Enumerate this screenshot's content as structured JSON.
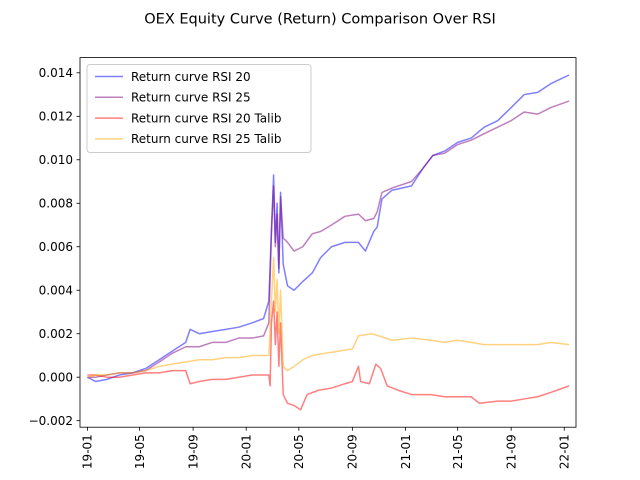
{
  "chart_data": {
    "type": "line",
    "title": "OEX Equity Curve (Return) Comparison Over RSI",
    "xlabel": "",
    "ylabel": "",
    "x_ticks": [
      "19-01",
      "19-05",
      "19-09",
      "20-01",
      "20-05",
      "20-09",
      "21-01",
      "21-05",
      "21-09",
      "22-01"
    ],
    "x_tick_labels_visible": [
      "19-01",
      "19-05",
      "19-09",
      "20-01",
      "20-05",
      "20-09",
      "21-01",
      "21-05",
      "21-09",
      "22-01"
    ],
    "y_ticks": [
      "−0.002",
      "0.000",
      "0.002",
      "0.004",
      "0.006",
      "0.008",
      "0.010",
      "0.012",
      "0.014"
    ],
    "ylim": [
      -0.0023,
      0.0147
    ],
    "xlim": [
      "2018-12-15",
      "2022-01-28"
    ],
    "grid": false,
    "legend_position": "upper-left",
    "series": [
      {
        "name": "Return curve RSI 20",
        "color": "#0000ff",
        "points": [
          [
            "2019-01-01",
            0.0
          ],
          [
            "2019-01-20",
            -0.0002
          ],
          [
            "2019-02-15",
            -0.0001
          ],
          [
            "2019-03-15",
            0.0001
          ],
          [
            "2019-04-15",
            0.0002
          ],
          [
            "2019-05-15",
            0.0004
          ],
          [
            "2019-06-15",
            0.0008
          ],
          [
            "2019-07-15",
            0.0012
          ],
          [
            "2019-08-15",
            0.0016
          ],
          [
            "2019-08-25",
            0.0022
          ],
          [
            "2019-09-15",
            0.002
          ],
          [
            "2019-10-15",
            0.0021
          ],
          [
            "2019-11-15",
            0.0022
          ],
          [
            "2019-12-15",
            0.0023
          ],
          [
            "2020-01-15",
            0.0025
          ],
          [
            "2020-02-10",
            0.0027
          ],
          [
            "2020-02-22",
            0.0035
          ],
          [
            "2020-02-28",
            0.0068
          ],
          [
            "2020-03-04",
            0.0093
          ],
          [
            "2020-03-08",
            0.0062
          ],
          [
            "2020-03-12",
            0.008
          ],
          [
            "2020-03-16",
            0.0048
          ],
          [
            "2020-03-20",
            0.0085
          ],
          [
            "2020-03-26",
            0.0052
          ],
          [
            "2020-04-05",
            0.0042
          ],
          [
            "2020-04-20",
            0.004
          ],
          [
            "2020-05-10",
            0.0044
          ],
          [
            "2020-06-01",
            0.0048
          ],
          [
            "2020-06-20",
            0.0055
          ],
          [
            "2020-07-15",
            0.006
          ],
          [
            "2020-08-15",
            0.0062
          ],
          [
            "2020-09-15",
            0.0062
          ],
          [
            "2020-10-01",
            0.0058
          ],
          [
            "2020-10-20",
            0.0067
          ],
          [
            "2020-10-28",
            0.0069
          ],
          [
            "2020-11-08",
            0.0082
          ],
          [
            "2020-12-01",
            0.0086
          ],
          [
            "2021-01-15",
            0.0088
          ],
          [
            "2021-02-10",
            0.0096
          ],
          [
            "2021-03-05",
            0.0102
          ],
          [
            "2021-04-01",
            0.0104
          ],
          [
            "2021-05-01",
            0.0108
          ],
          [
            "2021-06-01",
            0.011
          ],
          [
            "2021-07-01",
            0.0115
          ],
          [
            "2021-08-01",
            0.0118
          ],
          [
            "2021-09-01",
            0.0124
          ],
          [
            "2021-10-01",
            0.013
          ],
          [
            "2021-11-01",
            0.0131
          ],
          [
            "2021-12-01",
            0.0135
          ],
          [
            "2022-01-12",
            0.0139
          ]
        ]
      },
      {
        "name": "Return curve RSI 25",
        "color": "#800080",
        "points": [
          [
            "2019-01-01",
            0.0
          ],
          [
            "2019-01-20",
            0.0
          ],
          [
            "2019-02-15",
            0.0001
          ],
          [
            "2019-03-15",
            0.0002
          ],
          [
            "2019-04-15",
            0.0002
          ],
          [
            "2019-05-15",
            0.0003
          ],
          [
            "2019-06-15",
            0.0007
          ],
          [
            "2019-07-15",
            0.0011
          ],
          [
            "2019-08-15",
            0.0014
          ],
          [
            "2019-09-15",
            0.0014
          ],
          [
            "2019-10-15",
            0.0016
          ],
          [
            "2019-11-15",
            0.0016
          ],
          [
            "2019-12-15",
            0.0018
          ],
          [
            "2020-01-15",
            0.0018
          ],
          [
            "2020-02-10",
            0.0019
          ],
          [
            "2020-02-22",
            0.0025
          ],
          [
            "2020-02-28",
            0.0066
          ],
          [
            "2020-03-04",
            0.0088
          ],
          [
            "2020-03-08",
            0.006
          ],
          [
            "2020-03-12",
            0.0075
          ],
          [
            "2020-03-16",
            0.005
          ],
          [
            "2020-03-20",
            0.0083
          ],
          [
            "2020-03-26",
            0.0064
          ],
          [
            "2020-04-05",
            0.0062
          ],
          [
            "2020-04-20",
            0.0058
          ],
          [
            "2020-05-10",
            0.006
          ],
          [
            "2020-06-01",
            0.0066
          ],
          [
            "2020-06-20",
            0.0067
          ],
          [
            "2020-07-15",
            0.007
          ],
          [
            "2020-08-15",
            0.0074
          ],
          [
            "2020-09-15",
            0.0075
          ],
          [
            "2020-10-01",
            0.0072
          ],
          [
            "2020-10-20",
            0.0073
          ],
          [
            "2020-10-28",
            0.0076
          ],
          [
            "2020-11-08",
            0.0085
          ],
          [
            "2020-12-01",
            0.0087
          ],
          [
            "2021-01-15",
            0.009
          ],
          [
            "2021-02-10",
            0.0096
          ],
          [
            "2021-03-05",
            0.0102
          ],
          [
            "2021-04-01",
            0.0103
          ],
          [
            "2021-05-01",
            0.0107
          ],
          [
            "2021-06-01",
            0.0109
          ],
          [
            "2021-07-01",
            0.0112
          ],
          [
            "2021-08-01",
            0.0115
          ],
          [
            "2021-09-01",
            0.0118
          ],
          [
            "2021-10-01",
            0.0122
          ],
          [
            "2021-11-01",
            0.0121
          ],
          [
            "2021-12-01",
            0.0124
          ],
          [
            "2022-01-12",
            0.0127
          ]
        ]
      },
      {
        "name": "Return curve RSI 20 Talib",
        "color": "#ff0000",
        "points": [
          [
            "2019-01-01",
            0.0001
          ],
          [
            "2019-01-20",
            0.0001
          ],
          [
            "2019-02-15",
            0.0
          ],
          [
            "2019-03-15",
            0.0
          ],
          [
            "2019-04-15",
            0.0001
          ],
          [
            "2019-05-15",
            0.0002
          ],
          [
            "2019-06-15",
            0.0002
          ],
          [
            "2019-07-15",
            0.0003
          ],
          [
            "2019-08-15",
            0.0003
          ],
          [
            "2019-08-25",
            -0.0003
          ],
          [
            "2019-09-15",
            -0.0002
          ],
          [
            "2019-10-15",
            -0.0001
          ],
          [
            "2019-11-15",
            -0.0001
          ],
          [
            "2019-12-15",
            0.0
          ],
          [
            "2020-01-15",
            0.0001
          ],
          [
            "2020-02-10",
            0.0001
          ],
          [
            "2020-02-22",
            0.0001
          ],
          [
            "2020-02-25",
            -0.0004
          ],
          [
            "2020-02-28",
            0.0025
          ],
          [
            "2020-03-04",
            0.0035
          ],
          [
            "2020-03-08",
            0.0015
          ],
          [
            "2020-03-12",
            0.003
          ],
          [
            "2020-03-16",
            0.0005
          ],
          [
            "2020-03-20",
            0.0025
          ],
          [
            "2020-03-26",
            -0.0008
          ],
          [
            "2020-04-05",
            -0.0012
          ],
          [
            "2020-04-20",
            -0.0013
          ],
          [
            "2020-05-05",
            -0.0015
          ],
          [
            "2020-05-20",
            -0.0008
          ],
          [
            "2020-06-15",
            -0.0006
          ],
          [
            "2020-07-15",
            -0.0005
          ],
          [
            "2020-08-15",
            -0.0003
          ],
          [
            "2020-09-01",
            -0.0002
          ],
          [
            "2020-09-15",
            0.0005
          ],
          [
            "2020-09-20",
            -0.0002
          ],
          [
            "2020-10-10",
            -0.0003
          ],
          [
            "2020-10-25",
            0.0006
          ],
          [
            "2020-11-05",
            0.0004
          ],
          [
            "2020-11-20",
            -0.0004
          ],
          [
            "2020-12-15",
            -0.0006
          ],
          [
            "2021-01-15",
            -0.0008
          ],
          [
            "2021-03-01",
            -0.0008
          ],
          [
            "2021-04-01",
            -0.0009
          ],
          [
            "2021-05-01",
            -0.0009
          ],
          [
            "2021-06-01",
            -0.0009
          ],
          [
            "2021-06-20",
            -0.0012
          ],
          [
            "2021-08-01",
            -0.0011
          ],
          [
            "2021-09-01",
            -0.0011
          ],
          [
            "2021-10-01",
            -0.001
          ],
          [
            "2021-11-01",
            -0.0009
          ],
          [
            "2021-12-01",
            -0.0007
          ],
          [
            "2022-01-12",
            -0.0004
          ]
        ]
      },
      {
        "name": "Return curve RSI 25 Talib",
        "color": "#ffa500",
        "points": [
          [
            "2019-01-01",
            0.0
          ],
          [
            "2019-01-20",
            0.0001
          ],
          [
            "2019-02-15",
            0.0001
          ],
          [
            "2019-03-15",
            0.0002
          ],
          [
            "2019-04-15",
            0.0002
          ],
          [
            "2019-05-15",
            0.0003
          ],
          [
            "2019-06-15",
            0.0005
          ],
          [
            "2019-07-15",
            0.0006
          ],
          [
            "2019-08-15",
            0.0007
          ],
          [
            "2019-09-15",
            0.0008
          ],
          [
            "2019-10-15",
            0.0008
          ],
          [
            "2019-11-15",
            0.0009
          ],
          [
            "2019-12-15",
            0.0009
          ],
          [
            "2020-01-15",
            0.001
          ],
          [
            "2020-02-10",
            0.001
          ],
          [
            "2020-02-22",
            0.001
          ],
          [
            "2020-02-28",
            0.0035
          ],
          [
            "2020-03-04",
            0.0055
          ],
          [
            "2020-03-08",
            0.003
          ],
          [
            "2020-03-12",
            0.0045
          ],
          [
            "2020-03-16",
            0.002
          ],
          [
            "2020-03-20",
            0.004
          ],
          [
            "2020-03-26",
            0.0005
          ],
          [
            "2020-04-05",
            0.0003
          ],
          [
            "2020-04-20",
            0.0005
          ],
          [
            "2020-05-10",
            0.0008
          ],
          [
            "2020-06-01",
            0.001
          ],
          [
            "2020-07-01",
            0.0011
          ],
          [
            "2020-08-01",
            0.0012
          ],
          [
            "2020-09-01",
            0.0013
          ],
          [
            "2020-09-15",
            0.0019
          ],
          [
            "2020-10-15",
            0.002
          ],
          [
            "2020-11-01",
            0.0019
          ],
          [
            "2020-12-01",
            0.0017
          ],
          [
            "2021-01-15",
            0.0018
          ],
          [
            "2021-03-01",
            0.0017
          ],
          [
            "2021-04-01",
            0.0016
          ],
          [
            "2021-05-01",
            0.0017
          ],
          [
            "2021-06-01",
            0.0016
          ],
          [
            "2021-07-01",
            0.0015
          ],
          [
            "2021-08-01",
            0.0015
          ],
          [
            "2021-09-01",
            0.0015
          ],
          [
            "2021-10-01",
            0.0015
          ],
          [
            "2021-11-01",
            0.0015
          ],
          [
            "2021-12-01",
            0.0016
          ],
          [
            "2022-01-12",
            0.0015
          ]
        ]
      }
    ]
  }
}
